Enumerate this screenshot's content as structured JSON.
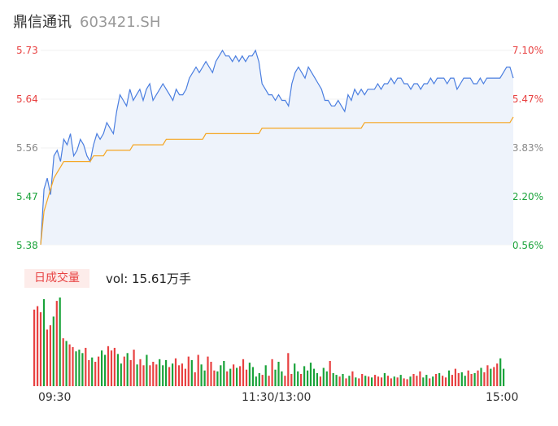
{
  "header": {
    "name": "鼎信通讯",
    "code": "603421.SH"
  },
  "volume": {
    "tab_label": "日成交量",
    "summary": "vol: 15.61万手"
  },
  "colors": {
    "price_line": "#4a7ee0",
    "avg_line": "#f5a623",
    "area_fill": "#eef3fb",
    "up": "#e84141",
    "down": "#1aa33a",
    "neutral": "#888888",
    "grid": "#f0f0f0"
  },
  "chart_data": [
    {
      "type": "line",
      "y_left_ticks": [
        "5.73",
        "5.64",
        "5.56",
        "5.47",
        "5.38"
      ],
      "y_right_ticks": [
        "7.10%",
        "5.47%",
        "3.83%",
        "2.20%",
        "0.56%"
      ],
      "ylim": [
        5.38,
        5.73
      ],
      "x_ticks": [
        "09:30",
        "11:30/13:00",
        "15:00"
      ],
      "series": [
        {
          "values": [
            5.38,
            5.48,
            5.5,
            5.47,
            5.54,
            5.55,
            5.53,
            5.57,
            5.56,
            5.58,
            5.54,
            5.55,
            5.57,
            5.56,
            5.54,
            5.53,
            5.56,
            5.58,
            5.57,
            5.58,
            5.6,
            5.59,
            5.58,
            5.62,
            5.65,
            5.64,
            5.63,
            5.66,
            5.64,
            5.65,
            5.66,
            5.64,
            5.66,
            5.67,
            5.64,
            5.65,
            5.66,
            5.67,
            5.66,
            5.65,
            5.64,
            5.66,
            5.65,
            5.65,
            5.66,
            5.68,
            5.69,
            5.7,
            5.69,
            5.7,
            5.71,
            5.7,
            5.69,
            5.71,
            5.72,
            5.73,
            5.72,
            5.72,
            5.71,
            5.72,
            5.71,
            5.72,
            5.71,
            5.72,
            5.72,
            5.73,
            5.71,
            5.67,
            5.66,
            5.65,
            5.65,
            5.64,
            5.65,
            5.64,
            5.64,
            5.63,
            5.67,
            5.69,
            5.7,
            5.69,
            5.68,
            5.7,
            5.69,
            5.68,
            5.67,
            5.66,
            5.64,
            5.64,
            5.63,
            5.63,
            5.64,
            5.63,
            5.62,
            5.65,
            5.64,
            5.66,
            5.65,
            5.66,
            5.65,
            5.66,
            5.66,
            5.66,
            5.67,
            5.66,
            5.67,
            5.67,
            5.68,
            5.67,
            5.68,
            5.68,
            5.67,
            5.67,
            5.66,
            5.67,
            5.67,
            5.66,
            5.67,
            5.67,
            5.68,
            5.67,
            5.68,
            5.68,
            5.68,
            5.67,
            5.68,
            5.68,
            5.66,
            5.67,
            5.68,
            5.68,
            5.68,
            5.67,
            5.67,
            5.68,
            5.67,
            5.68,
            5.68,
            5.68,
            5.68,
            5.68,
            5.69,
            5.7,
            5.7,
            5.68
          ]
        },
        {
          "values": [
            5.38,
            5.44,
            5.46,
            5.48,
            5.5,
            5.51,
            5.52,
            5.53,
            5.53,
            5.53,
            5.53,
            5.53,
            5.53,
            5.53,
            5.53,
            5.53,
            5.54,
            5.54,
            5.54,
            5.54,
            5.55,
            5.55,
            5.55,
            5.55,
            5.55,
            5.55,
            5.55,
            5.55,
            5.56,
            5.56,
            5.56,
            5.56,
            5.56,
            5.56,
            5.56,
            5.56,
            5.56,
            5.56,
            5.57,
            5.57,
            5.57,
            5.57,
            5.57,
            5.57,
            5.57,
            5.57,
            5.57,
            5.57,
            5.57,
            5.57,
            5.58,
            5.58,
            5.58,
            5.58,
            5.58,
            5.58,
            5.58,
            5.58,
            5.58,
            5.58,
            5.58,
            5.58,
            5.58,
            5.58,
            5.58,
            5.58,
            5.58,
            5.59,
            5.59,
            5.59,
            5.59,
            5.59,
            5.59,
            5.59,
            5.59,
            5.59,
            5.59,
            5.59,
            5.59,
            5.59,
            5.59,
            5.59,
            5.59,
            5.59,
            5.59,
            5.59,
            5.59,
            5.59,
            5.59,
            5.59,
            5.59,
            5.59,
            5.59,
            5.59,
            5.59,
            5.59,
            5.59,
            5.59,
            5.6,
            5.6,
            5.6,
            5.6,
            5.6,
            5.6,
            5.6,
            5.6,
            5.6,
            5.6,
            5.6,
            5.6,
            5.6,
            5.6,
            5.6,
            5.6,
            5.6,
            5.6,
            5.6,
            5.6,
            5.6,
            5.6,
            5.6,
            5.6,
            5.6,
            5.6,
            5.6,
            5.6,
            5.6,
            5.6,
            5.6,
            5.6,
            5.6,
            5.6,
            5.6,
            5.6,
            5.6,
            5.6,
            5.6,
            5.6,
            5.6,
            5.6,
            5.6,
            5.6,
            5.6,
            5.61
          ]
        }
      ]
    },
    {
      "type": "bar",
      "values": [
        88,
        92,
        85,
        100,
        65,
        70,
        80,
        98,
        102,
        55,
        52,
        48,
        45,
        40,
        42,
        38,
        44,
        30,
        33,
        28,
        34,
        41,
        36,
        46,
        41,
        44,
        37,
        26,
        34,
        38,
        30,
        42,
        25,
        31,
        24,
        36,
        24,
        28,
        25,
        31,
        24,
        30,
        22,
        26,
        32,
        24,
        26,
        20,
        34,
        30,
        16,
        36,
        25,
        18,
        34,
        28,
        18,
        17,
        24,
        29,
        17,
        20,
        25,
        21,
        23,
        31,
        19,
        27,
        22,
        11,
        15,
        13,
        24,
        12,
        31,
        19,
        28,
        17,
        12,
        38,
        14,
        26,
        17,
        14,
        23,
        18,
        27,
        20,
        15,
        11,
        21,
        17,
        29,
        15,
        13,
        11,
        14,
        9,
        12,
        17,
        10,
        9,
        14,
        12,
        11,
        10,
        13,
        11,
        10,
        15,
        12,
        9,
        11,
        10,
        13,
        9,
        8,
        11,
        14,
        12,
        17,
        10,
        13,
        9,
        11,
        14,
        15,
        12,
        10,
        18,
        13,
        20,
        15,
        16,
        12,
        18,
        14,
        15,
        18,
        21,
        16,
        24,
        20,
        22,
        26,
        32,
        20
      ]
    }
  ]
}
